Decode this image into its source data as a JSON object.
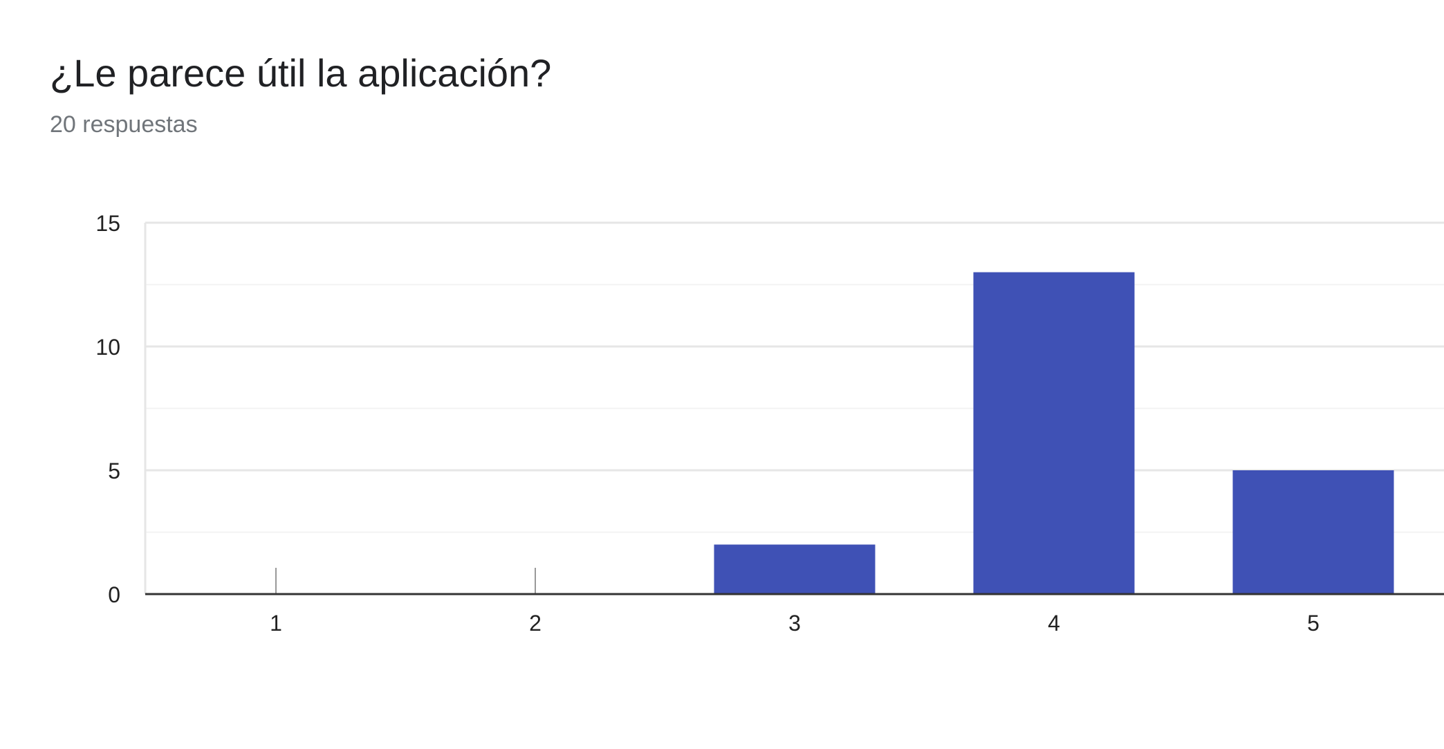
{
  "form": {
    "question": "¿Le parece útil la aplicación?",
    "responses_label": "20 respuestas"
  },
  "colors": {
    "bar": "#3f51b5",
    "axis": "#333333",
    "grid_major": "#e6e6e6",
    "grid_minor": "#f3f3f3",
    "text": "#222222"
  },
  "chart_data": {
    "type": "bar",
    "categories": [
      "1",
      "2",
      "3",
      "4",
      "5"
    ],
    "values": [
      0,
      0,
      2,
      13,
      5
    ],
    "yticks": [
      "0",
      "5",
      "10",
      "15"
    ],
    "ylim": [
      0,
      15
    ],
    "grid": true,
    "legend": "none"
  }
}
